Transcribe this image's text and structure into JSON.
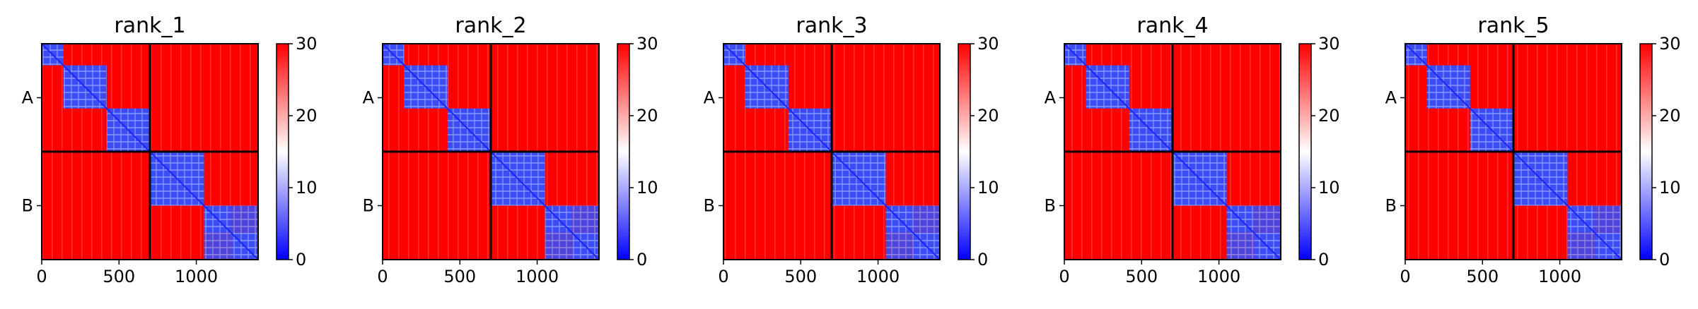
{
  "chart_data": [
    {
      "type": "heatmap",
      "title": "rank_1",
      "xlabel": "",
      "ylabel": "",
      "xticks": [
        "0",
        "500",
        "1000"
      ],
      "xtick_values": [
        0,
        500,
        1000
      ],
      "xlim": [
        0,
        1400
      ],
      "yticks": [
        "A",
        "B"
      ],
      "chain_boundary": 700,
      "blocks": [
        [
          0,
          140
        ],
        [
          140,
          420
        ],
        [
          420,
          700
        ],
        [
          700,
          1050
        ],
        [
          1050,
          1225
        ],
        [
          1225,
          1400
        ]
      ],
      "colorbar": {
        "ticks": [
          "0",
          "10",
          "20",
          "30"
        ],
        "tick_values": [
          0,
          10,
          20,
          30
        ],
        "range": [
          0,
          30
        ],
        "colormap": "bwr"
      },
      "grid": false
    },
    {
      "type": "heatmap",
      "title": "rank_2",
      "xlabel": "",
      "ylabel": "",
      "xticks": [
        "0",
        "500",
        "1000"
      ],
      "xtick_values": [
        0,
        500,
        1000
      ],
      "xlim": [
        0,
        1400
      ],
      "yticks": [
        "A",
        "B"
      ],
      "chain_boundary": 700,
      "blocks": [
        [
          0,
          140
        ],
        [
          140,
          420
        ],
        [
          420,
          700
        ],
        [
          700,
          1050
        ],
        [
          1050,
          1225
        ],
        [
          1225,
          1400
        ]
      ],
      "colorbar": {
        "ticks": [
          "0",
          "10",
          "20",
          "30"
        ],
        "tick_values": [
          0,
          10,
          20,
          30
        ],
        "range": [
          0,
          30
        ],
        "colormap": "bwr"
      },
      "grid": false
    },
    {
      "type": "heatmap",
      "title": "rank_3",
      "xlabel": "",
      "ylabel": "",
      "xticks": [
        "0",
        "500",
        "1000"
      ],
      "xtick_values": [
        0,
        500,
        1000
      ],
      "xlim": [
        0,
        1400
      ],
      "yticks": [
        "A",
        "B"
      ],
      "chain_boundary": 700,
      "blocks": [
        [
          0,
          140
        ],
        [
          140,
          420
        ],
        [
          420,
          700
        ],
        [
          700,
          1050
        ],
        [
          1050,
          1225
        ],
        [
          1225,
          1400
        ]
      ],
      "colorbar": {
        "ticks": [
          "0",
          "10",
          "20",
          "30"
        ],
        "tick_values": [
          0,
          10,
          20,
          30
        ],
        "range": [
          0,
          30
        ],
        "colormap": "bwr"
      },
      "grid": false
    },
    {
      "type": "heatmap",
      "title": "rank_4",
      "xlabel": "",
      "ylabel": "",
      "xticks": [
        "0",
        "500",
        "1000"
      ],
      "xtick_values": [
        0,
        500,
        1000
      ],
      "xlim": [
        0,
        1400
      ],
      "yticks": [
        "A",
        "B"
      ],
      "chain_boundary": 700,
      "blocks": [
        [
          0,
          140
        ],
        [
          140,
          420
        ],
        [
          420,
          700
        ],
        [
          700,
          1050
        ],
        [
          1050,
          1225
        ],
        [
          1225,
          1400
        ]
      ],
      "colorbar": {
        "ticks": [
          "0",
          "10",
          "20",
          "30"
        ],
        "tick_values": [
          0,
          10,
          20,
          30
        ],
        "range": [
          0,
          30
        ],
        "colormap": "bwr"
      },
      "grid": false
    },
    {
      "type": "heatmap",
      "title": "rank_5",
      "xlabel": "",
      "ylabel": "",
      "xticks": [
        "0",
        "500",
        "1000"
      ],
      "xtick_values": [
        0,
        500,
        1000
      ],
      "xlim": [
        0,
        1400
      ],
      "yticks": [
        "A",
        "B"
      ],
      "chain_boundary": 700,
      "blocks": [
        [
          0,
          140
        ],
        [
          140,
          420
        ],
        [
          420,
          700
        ],
        [
          700,
          1050
        ],
        [
          1050,
          1225
        ],
        [
          1225,
          1400
        ]
      ],
      "colorbar": {
        "ticks": [
          "0",
          "10",
          "20",
          "30"
        ],
        "tick_values": [
          0,
          10,
          20,
          30
        ],
        "range": [
          0,
          30
        ],
        "colormap": "bwr"
      },
      "grid": false
    }
  ],
  "colors": {
    "high": "#ff0000",
    "mid": "#ffffff",
    "low": "#0000ff",
    "frame": "#000000"
  }
}
